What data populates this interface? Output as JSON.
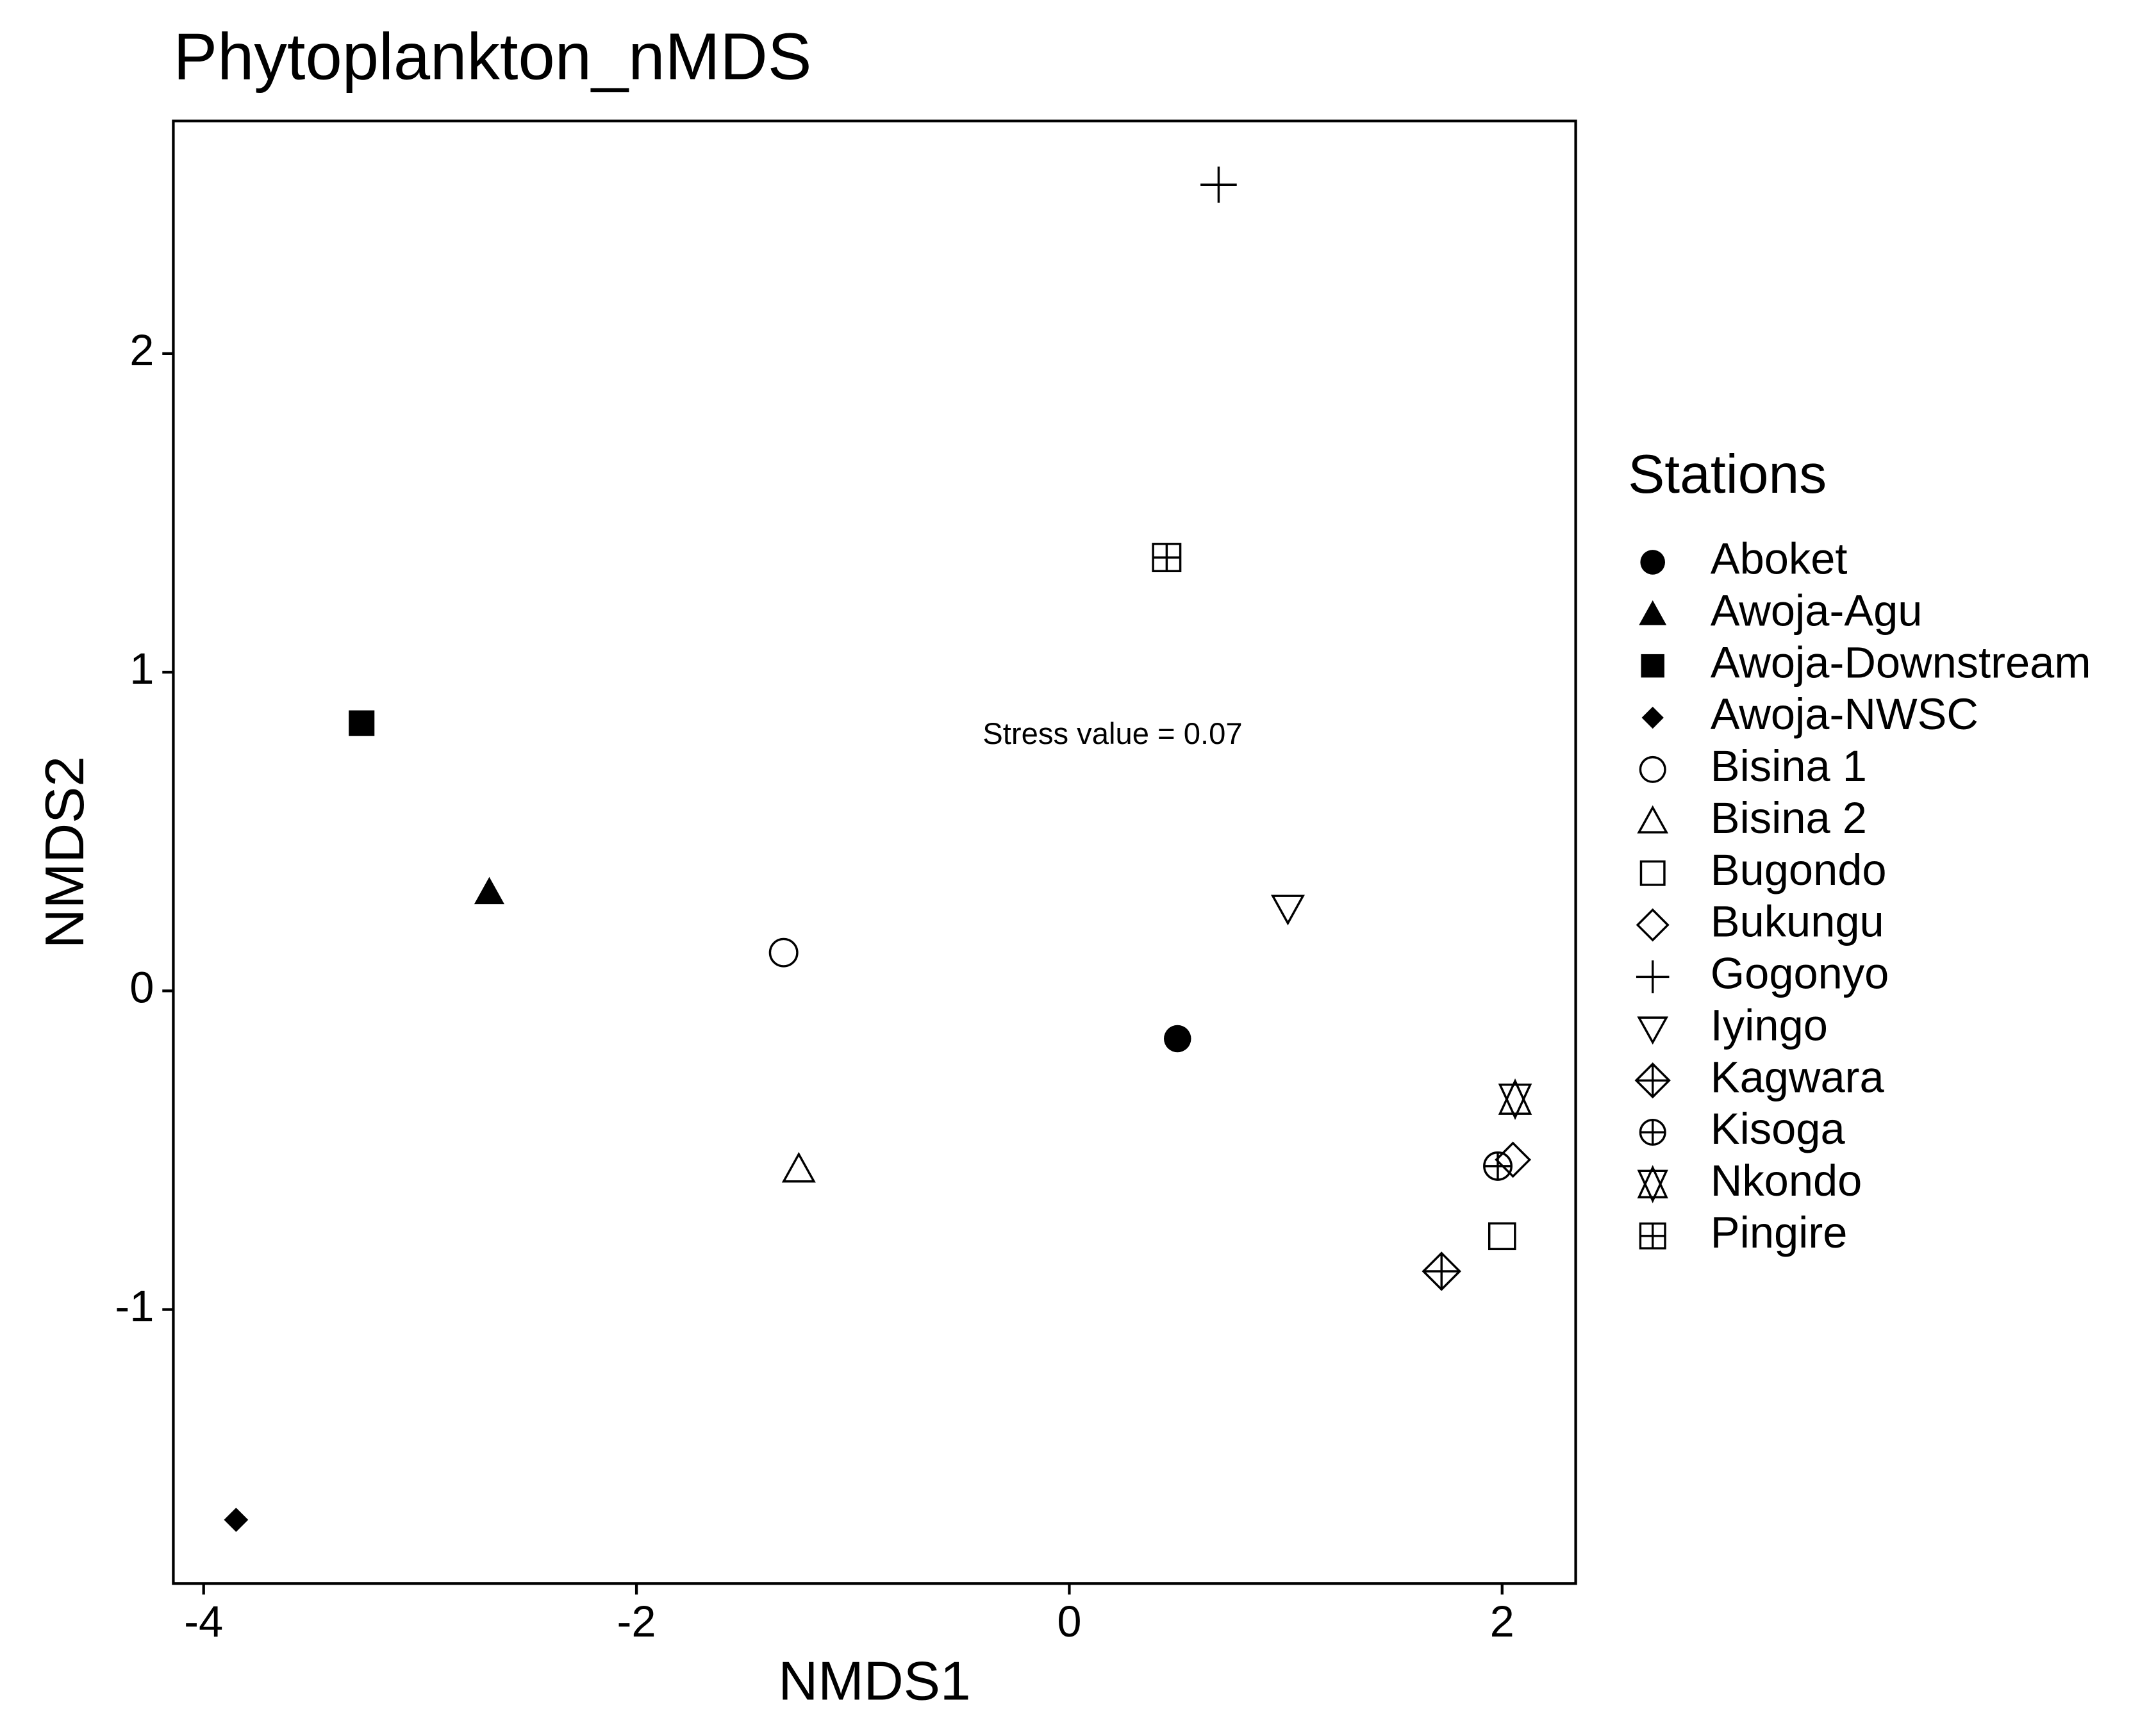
{
  "chart_data": {
    "type": "scatter",
    "title": "Phytoplankton_nMDS",
    "xlabel": "NMDS1",
    "ylabel": "NMDS2",
    "xlim": [
      -4.14,
      2.34
    ],
    "ylim": [
      -1.86,
      2.73
    ],
    "xticks": [
      -4,
      -2,
      0,
      2
    ],
    "yticks": [
      -1,
      0,
      1,
      2
    ],
    "grid": false,
    "legend_title": "Stations",
    "legend": "right",
    "annotation": {
      "text": "Stress value = 0.07",
      "x": 0.2,
      "y": 0.8
    },
    "series": [
      {
        "name": "Aboket",
        "marker": "circle-filled",
        "color": "#000000",
        "x": [
          0.5
        ],
        "y": [
          -0.15
        ]
      },
      {
        "name": "Awoja-Agu",
        "marker": "triangle-filled",
        "color": "#000000",
        "x": [
          -2.68
        ],
        "y": [
          0.31
        ]
      },
      {
        "name": "Awoja-Downstream",
        "marker": "square-filled",
        "color": "#000000",
        "x": [
          -3.27
        ],
        "y": [
          0.84
        ]
      },
      {
        "name": "Awoja-NWSC",
        "marker": "diamond-filled",
        "color": "#000000",
        "x": [
          -3.85
        ],
        "y": [
          -1.66
        ]
      },
      {
        "name": "Bisina 1",
        "marker": "circle-open",
        "color": "#000000",
        "x": [
          -1.32
        ],
        "y": [
          0.12
        ]
      },
      {
        "name": "Bisina 2",
        "marker": "triangle-open",
        "color": "#000000",
        "x": [
          -1.25
        ],
        "y": [
          -0.56
        ]
      },
      {
        "name": "Bugondo",
        "marker": "square-open",
        "color": "#000000",
        "x": [
          2.0
        ],
        "y": [
          -0.77
        ]
      },
      {
        "name": "Bukungu",
        "marker": "diamond-open",
        "color": "#000000",
        "x": [
          2.05
        ],
        "y": [
          -0.53
        ]
      },
      {
        "name": "Gogonyo",
        "marker": "plus",
        "color": "#000000",
        "x": [
          0.69
        ],
        "y": [
          2.53
        ]
      },
      {
        "name": "Iyingo",
        "marker": "triangle-down-open",
        "color": "#000000",
        "x": [
          1.01
        ],
        "y": [
          0.26
        ]
      },
      {
        "name": "Kagwara",
        "marker": "diamond-plus",
        "color": "#000000",
        "x": [
          1.72
        ],
        "y": [
          -0.88
        ]
      },
      {
        "name": "Kisoga",
        "marker": "circle-plus",
        "color": "#000000",
        "x": [
          1.98
        ],
        "y": [
          -0.55
        ]
      },
      {
        "name": "Nkondo",
        "marker": "star-of-david",
        "color": "#000000",
        "x": [
          2.06
        ],
        "y": [
          -0.34
        ]
      },
      {
        "name": "Pingire",
        "marker": "square-plus",
        "color": "#000000",
        "x": [
          0.45
        ],
        "y": [
          1.36
        ]
      }
    ]
  }
}
